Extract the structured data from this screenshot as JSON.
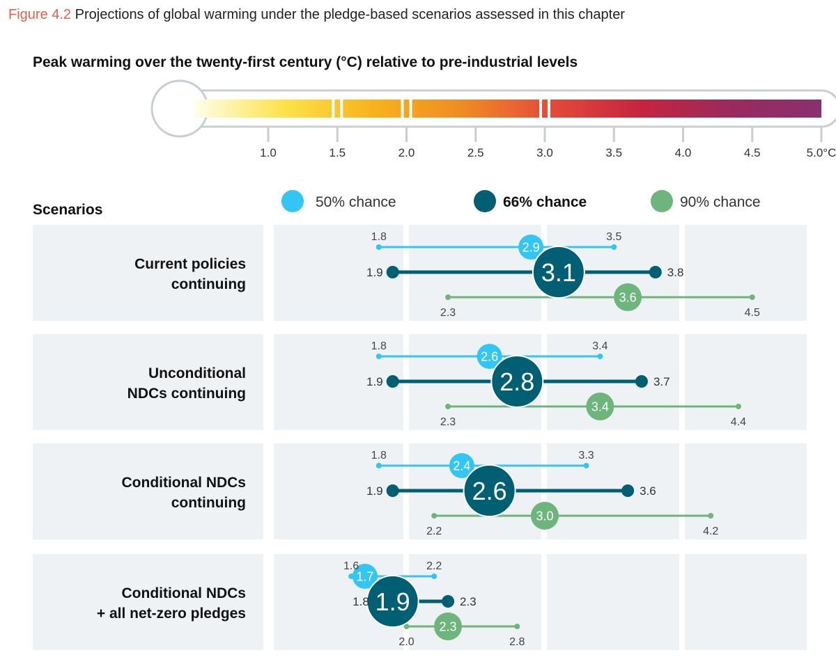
{
  "figure": {
    "number": "Figure 4.2",
    "title": "Projections of global warming under the pledge-based scenarios assessed in this chapter"
  },
  "thermometer": {
    "title": "Peak warming over the twenty-first century (°C) relative to pre-industrial levels",
    "ticks": [
      {
        "value": 1.0,
        "label": "1.0"
      },
      {
        "value": 1.5,
        "label": "1.5"
      },
      {
        "value": 2.0,
        "label": "2.0"
      },
      {
        "value": 2.5,
        "label": "2.5"
      },
      {
        "value": 3.0,
        "label": "3.0"
      },
      {
        "value": 3.5,
        "label": "3.5"
      },
      {
        "value": 4.0,
        "label": "4.0"
      },
      {
        "value": 4.5,
        "label": "4.5"
      },
      {
        "value": 5.0,
        "label": "5.0°C"
      }
    ],
    "separators": [
      1.5,
      2.0,
      3.0
    ]
  },
  "colors": {
    "p50": "#33c5f3",
    "p66": "#005f73",
    "p90": "#6db57c",
    "panel_bg": "#eff2f5",
    "gradient": [
      "#fefee8",
      "#fde24a",
      "#f7b21c",
      "#f08a24",
      "#e4493a",
      "#c5243f",
      "#9a2a5e",
      "#88306f"
    ]
  },
  "chart_data": {
    "type": "range-dot",
    "title": "Peak warming over the twenty-first century (°C) relative to pre-industrial levels",
    "xlim": [
      1.0,
      5.0
    ],
    "grid_x": [
      2.0,
      3.0,
      4.0
    ],
    "legend": {
      "placement": "top",
      "title": "Scenarios",
      "items": [
        {
          "key": "p50",
          "label": "50% chance"
        },
        {
          "key": "p66",
          "label": "66% chance"
        },
        {
          "key": "p90",
          "label": "90% chance"
        }
      ]
    },
    "series": [
      {
        "name": "50% chance",
        "key": "p50"
      },
      {
        "name": "66% chance",
        "key": "p66"
      },
      {
        "name": "90% chance",
        "key": "p90"
      }
    ],
    "scenarios": [
      {
        "label": [
          "Current policies",
          "continuing"
        ],
        "p50": {
          "low": 1.8,
          "central": 2.9,
          "high": 3.5,
          "low_label": "1.8",
          "central_label": "2.9",
          "high_label": "3.5"
        },
        "p66": {
          "low": 1.9,
          "central": 3.1,
          "high": 3.8,
          "low_label": "1.9",
          "central_label": "3.1",
          "high_label": "3.8"
        },
        "p90": {
          "low": 2.3,
          "central": 3.6,
          "high": 4.5,
          "low_label": "2.3",
          "central_label": "3.6",
          "high_label": "4.5"
        }
      },
      {
        "label": [
          "Unconditional",
          "NDCs continuing"
        ],
        "p50": {
          "low": 1.8,
          "central": 2.6,
          "high": 3.4,
          "low_label": "1.8",
          "central_label": "2.6",
          "high_label": "3.4"
        },
        "p66": {
          "low": 1.9,
          "central": 2.8,
          "high": 3.7,
          "low_label": "1.9",
          "central_label": "2.8",
          "high_label": "3.7"
        },
        "p90": {
          "low": 2.3,
          "central": 3.4,
          "high": 4.4,
          "low_label": "2.3",
          "central_label": "3.4",
          "high_label": "4.4"
        }
      },
      {
        "label": [
          "Conditional NDCs",
          "continuing"
        ],
        "p50": {
          "low": 1.8,
          "central": 2.4,
          "high": 3.3,
          "low_label": "1.8",
          "central_label": "2.4",
          "high_label": "3.3"
        },
        "p66": {
          "low": 1.9,
          "central": 2.6,
          "high": 3.6,
          "low_label": "1.9",
          "central_label": "2.6",
          "high_label": "3.6"
        },
        "p90": {
          "low": 2.2,
          "central": 3.0,
          "high": 4.2,
          "low_label": "2.2",
          "central_label": "3.0",
          "high_label": "4.2"
        }
      },
      {
        "label": [
          "Conditional NDCs",
          "+ all net-zero pledges"
        ],
        "p50": {
          "low": 1.6,
          "central": 1.7,
          "high": 2.2,
          "low_label": "1.6",
          "central_label": "1.7",
          "high_label": "2.2"
        },
        "p66": {
          "low": 1.8,
          "central": 1.9,
          "high": 2.3,
          "low_label": "1.8",
          "central_label": "1.9",
          "high_label": "2.3"
        },
        "p90": {
          "low": 2.0,
          "central": 2.3,
          "high": 2.8,
          "low_label": "2.0",
          "central_label": "2.3",
          "high_label": "2.8"
        }
      }
    ]
  }
}
